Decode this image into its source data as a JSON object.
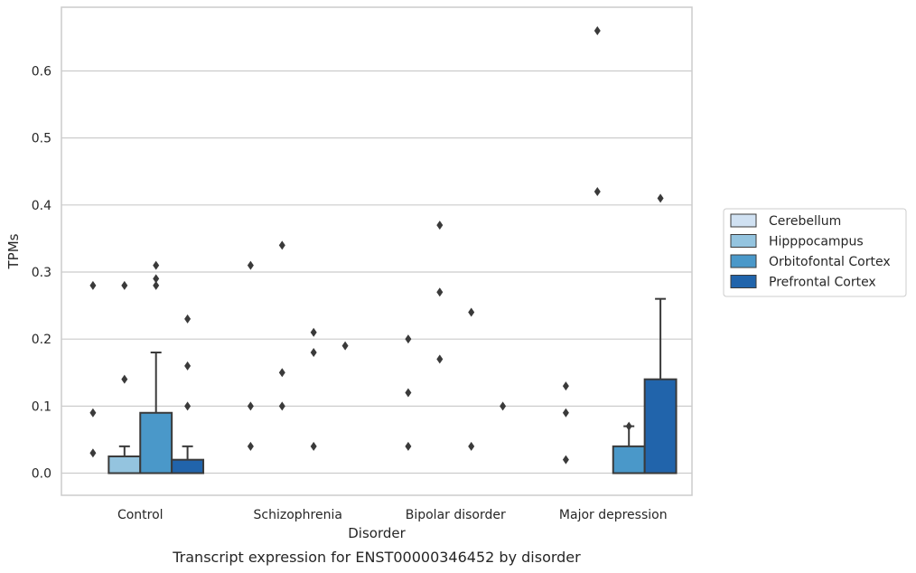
{
  "chart_data": {
    "type": "bar",
    "caption": "Transcript expression for ENST00000346452 by disorder",
    "xlabel": "Disorder",
    "ylabel": "TPMs",
    "ylim": [
      -0.033,
      0.695
    ],
    "yticks": [
      "0.0",
      "0.1",
      "0.2",
      "0.3",
      "0.4",
      "0.5",
      "0.6"
    ],
    "ytick_values": [
      0,
      0.1,
      0.2,
      0.3,
      0.4,
      0.5,
      0.6
    ],
    "categories": [
      "Control",
      "Schizophrenia",
      "Bipolar disorder",
      "Major depression"
    ],
    "grid": "horizontal",
    "legend_position": "right",
    "series": [
      {
        "name": "Cerebellum",
        "color": "#d0e1f2",
        "values": [
          0,
          0,
          0,
          0
        ],
        "error_upper": [
          null,
          null,
          null,
          null
        ],
        "outliers": [
          [
            0.03,
            0.09,
            0.28
          ],
          [
            0.04,
            0.1,
            0.31
          ],
          [
            0.04,
            0.12,
            0.2
          ],
          [
            0.02,
            0.09,
            0.13
          ]
        ]
      },
      {
        "name": "Hipppocampus",
        "color": "#94c4df",
        "values": [
          0.025,
          0,
          0,
          0
        ],
        "error_upper": [
          0.04,
          null,
          null,
          null
        ],
        "outliers": [
          [
            0.14,
            0.28
          ],
          [
            0.1,
            0.15,
            0.34
          ],
          [
            0.17,
            0.27,
            0.37
          ],
          [
            0.42,
            0.66
          ]
        ]
      },
      {
        "name": "Orbitofontal Cortex",
        "color": "#4a98c9",
        "values": [
          0.09,
          0,
          0,
          0.04
        ],
        "error_upper": [
          0.18,
          null,
          null,
          0.07
        ],
        "outliers": [
          [
            0.28,
            0.29,
            0.31
          ],
          [
            0.04,
            0.18,
            0.21
          ],
          [
            0.04,
            0.24
          ],
          [
            0.07
          ]
        ]
      },
      {
        "name": "Prefrontal Cortex",
        "color": "#2164ab",
        "values": [
          0.02,
          0,
          0,
          0.14
        ],
        "error_upper": [
          0.04,
          null,
          null,
          0.26
        ],
        "outliers": [
          [
            0.1,
            0.16,
            0.23
          ],
          [
            0.19
          ],
          [
            0.1
          ],
          [
            0.41
          ]
        ]
      }
    ]
  }
}
